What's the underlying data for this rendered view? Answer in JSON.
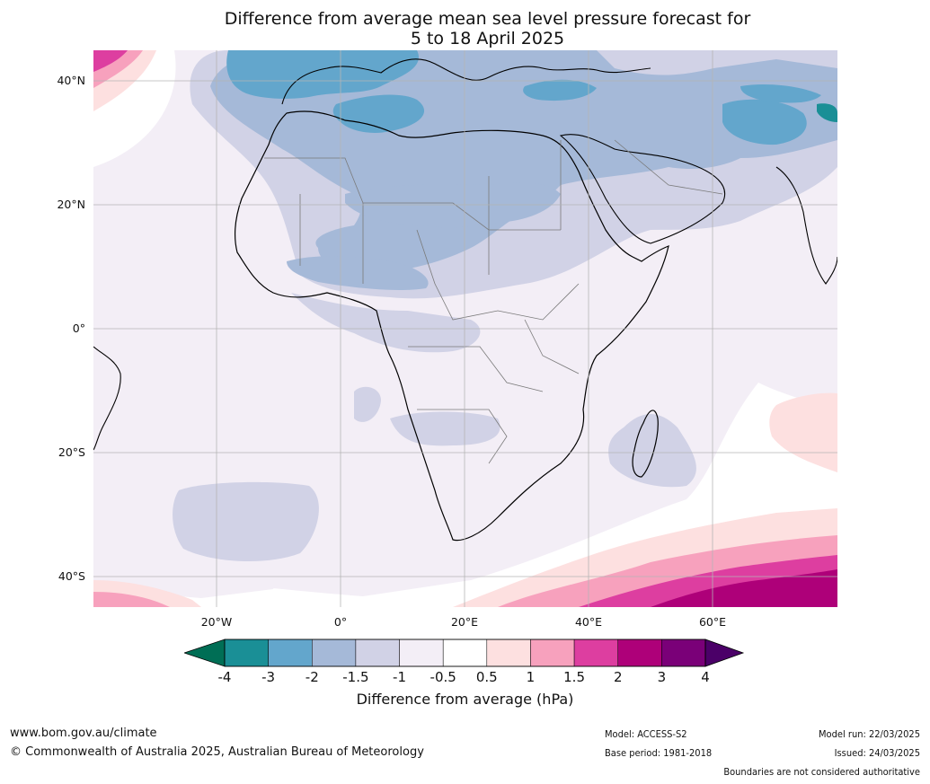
{
  "title_line1": "Difference from average mean sea level pressure forecast for",
  "title_line2": "5 to 18 April 2025",
  "lat_labels": [
    "40°N",
    "20°N",
    "0°",
    "20°S",
    "40°S"
  ],
  "lon_labels": [
    "20°W",
    "0°",
    "20°E",
    "40°E",
    "60°E"
  ],
  "colorbar": {
    "ticks": [
      "-4",
      "-3",
      "-2",
      "-1.5",
      "-1",
      "-0.5",
      "0.5",
      "1",
      "1.5",
      "2",
      "3",
      "4"
    ],
    "colors": [
      "#006e55",
      "#1a8f96",
      "#63a6cc",
      "#a5b9d8",
      "#d1d2e6",
      "#f3eef6",
      "#ffffff",
      "#fde0e0",
      "#f7a1bd",
      "#dd3ea0",
      "#ae0079",
      "#7a0078",
      "#4b0068"
    ],
    "label": "Difference from average (hPa)"
  },
  "footer": {
    "url": "www.bom.gov.au/climate",
    "copyright": "© Commonwealth of Australia 2025, Australian Bureau of Meteorology",
    "model": "Model: ACCESS-S2",
    "base_period": "Base period: 1981-2018",
    "model_run": "Model run: 22/03/2025",
    "issued": "Issued: 24/03/2025",
    "disclaimer": "Boundaries are not considered authoritative"
  }
}
